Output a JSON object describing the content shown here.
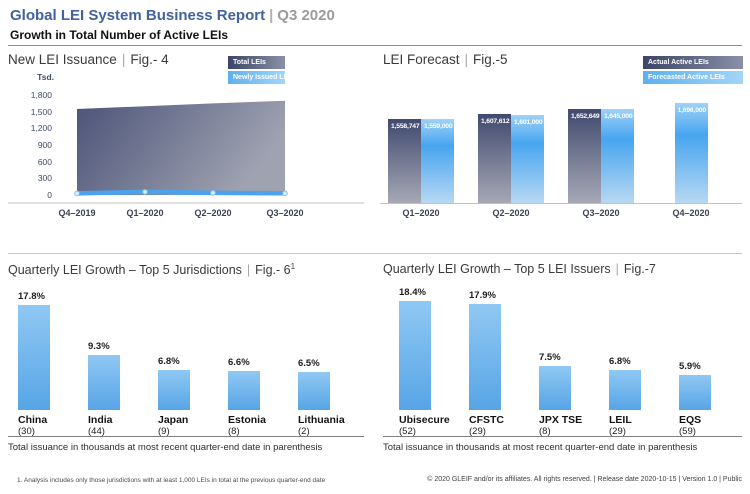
{
  "header": {
    "title": "Global LEI System Business Report",
    "separator": "|",
    "period": "Q3 2020",
    "subtitle": "Growth in Total Number of Active LEIs"
  },
  "ui": {
    "pipe": "|"
  },
  "colors": {
    "title_blue": "#41639f",
    "bar_dark_top": "#414a6f",
    "bar_dark_bottom": "#a6a8b5",
    "bar_light_top": "#9ed2f8",
    "bar_light_mid": "#47a5ef",
    "bar_light_bottom": "#b7d8f3",
    "growth_bar_top": "#90c8f3",
    "growth_bar_bottom": "#57a5e6",
    "issuance_line_blue": "#4aa3ec"
  },
  "chart_data": [
    {
      "id": "new_lei_issuance",
      "type": "area",
      "title": "New LEI Issuance",
      "fig": "Fig.- 4",
      "y_unit_label": "Tsd.",
      "ylim": [
        0,
        1800
      ],
      "y_ticks": [
        "1,800",
        "1,500",
        "1,200",
        "900",
        "600",
        "300",
        "0"
      ],
      "grid": false,
      "legend_position": "top-right",
      "categories": [
        "Q4–2019",
        "Q1–2020",
        "Q2–2020",
        "Q3–2020"
      ],
      "series": [
        {
          "name": "Total LEIs",
          "style": "area-dark",
          "values": [
            1550,
            1600,
            1650,
            1700
          ]
        },
        {
          "name": "Newly Issued LEIs",
          "style": "line-light",
          "values": [
            28,
            55,
            38,
            30
          ]
        }
      ]
    },
    {
      "id": "lei_forecast",
      "type": "bar",
      "title": "LEI Forecast",
      "fig": "Fig.-5",
      "legend_position": "top-right",
      "categories": [
        "Q1–2020",
        "Q2–2020",
        "Q3–2020",
        "Q4–2020"
      ],
      "series": [
        {
          "name": "Actual Active LEIs",
          "values": [
            1558747,
            1607612,
            1652649,
            null
          ],
          "labels": [
            "1,558,747",
            "1,607,612",
            "1,652,649",
            null
          ]
        },
        {
          "name": "Forecasted Active LEIs",
          "values": [
            1559000,
            1601000,
            1645000,
            1696000
          ],
          "labels": [
            "1,559,000",
            "1,601,000",
            "1,645,000",
            "1,696,000"
          ]
        }
      ]
    },
    {
      "id": "growth_top5_jurisdictions",
      "type": "bar",
      "title": "Quarterly LEI Growth – Top 5 Jurisdictions",
      "fig": "Fig.- 6",
      "fig_superscript": "1",
      "categories": [
        "China",
        "India",
        "Japan",
        "Estonia",
        "Lithuania"
      ],
      "issuance": [
        "(30)",
        "(44)",
        "(9)",
        "(8)",
        "(2)"
      ],
      "values": [
        17.8,
        9.3,
        6.8,
        6.6,
        6.5
      ],
      "labels": [
        "17.8%",
        "9.3%",
        "6.8%",
        "6.6%",
        "6.5%"
      ],
      "note": "Total issuance in thousands at most recent quarter-end date in parenthesis"
    },
    {
      "id": "growth_top5_lei_issuers",
      "type": "bar",
      "title": "Quarterly LEI Growth – Top 5 LEI Issuers",
      "fig": "Fig.-7",
      "categories": [
        "Ubisecure",
        "CFSTC",
        "JPX TSE",
        "LEIL",
        "EQS"
      ],
      "issuance": [
        "(52)",
        "(29)",
        "(8)",
        "(29)",
        "(59)"
      ],
      "values": [
        18.4,
        17.9,
        7.5,
        6.8,
        5.9
      ],
      "labels": [
        "18.4%",
        "17.9%",
        "7.5%",
        "6.8%",
        "5.9%"
      ],
      "note": "Total issuance in thousands at most recent quarter-end date in parenthesis"
    }
  ],
  "footer": {
    "footnote": "1. Analysis includes only those jurisdictions with at least 1,000 LEIs in total at the previous quarter-end date",
    "copyright": "© 2020 GLEIF and/or its affiliates. All rights reserved.  |  Release date 2020-10-15  |  Version 1.0  |  Public"
  }
}
